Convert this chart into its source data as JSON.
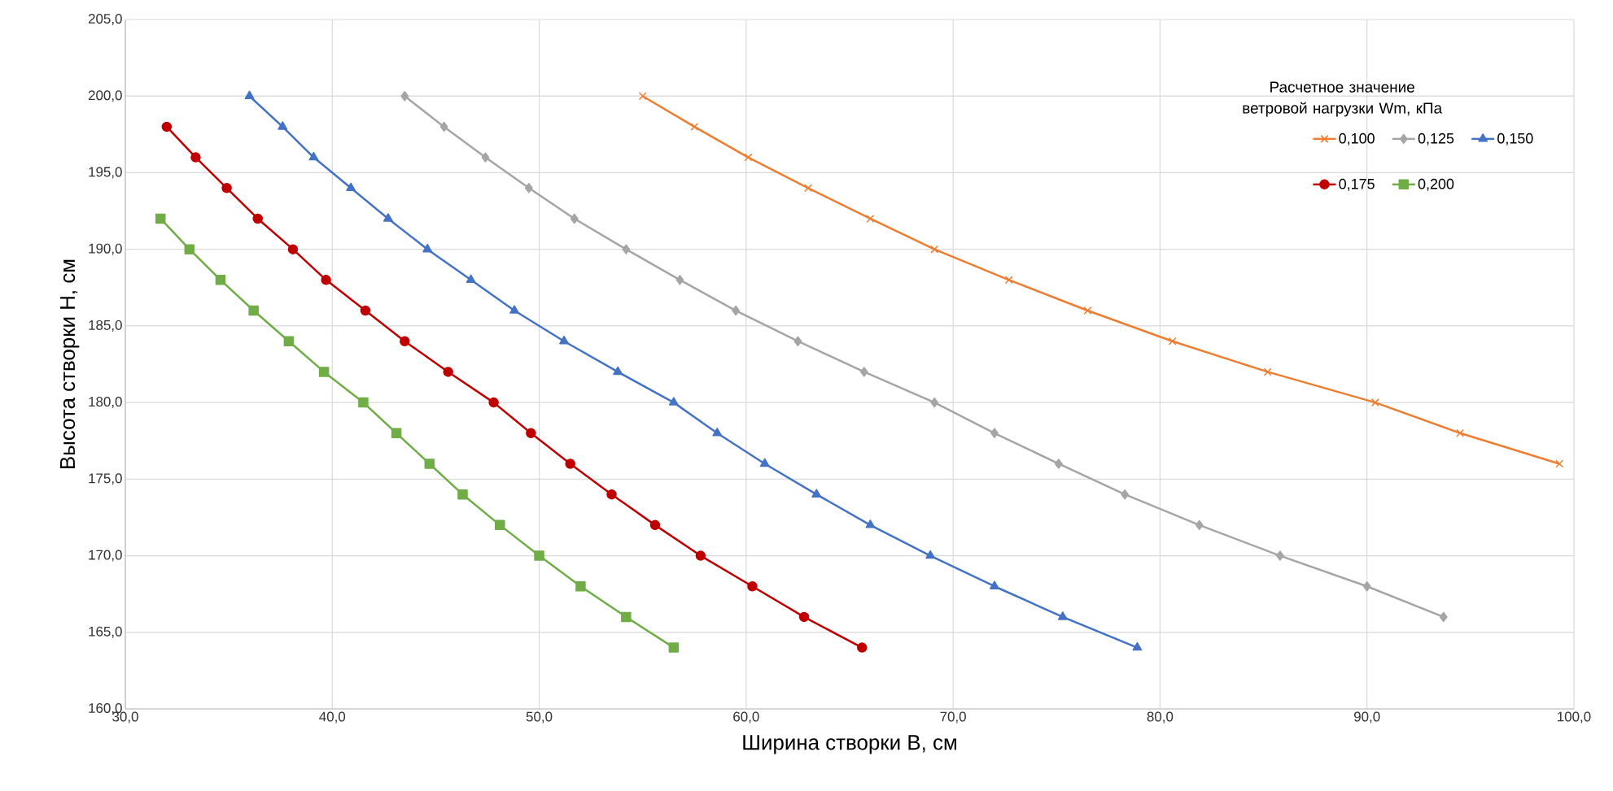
{
  "chart_data": {
    "type": "line",
    "xlabel": "Ширина створки B, см",
    "ylabel": "Высота створки H, см",
    "legend_title": "Расчетное значение ветровой нагрузки Wm, кПа",
    "legend": "top right",
    "grid": true,
    "line_style": "solid",
    "xlim": [
      30,
      100
    ],
    "ylim": [
      160,
      205
    ],
    "xticks": [
      {
        "value": 30,
        "label": "30,0"
      },
      {
        "value": 40,
        "label": "40,0"
      },
      {
        "value": 50,
        "label": "50,0"
      },
      {
        "value": 60,
        "label": "60,0"
      },
      {
        "value": 70,
        "label": "70,0"
      },
      {
        "value": 80,
        "label": "80,0"
      },
      {
        "value": 90,
        "label": "90,0"
      },
      {
        "value": 100,
        "label": "100,0"
      }
    ],
    "yticks": [
      {
        "value": 160,
        "label": "160,0"
      },
      {
        "value": 165,
        "label": "165,0"
      },
      {
        "value": 170,
        "label": "170,0"
      },
      {
        "value": 175,
        "label": "175,0"
      },
      {
        "value": 180,
        "label": "180,0"
      },
      {
        "value": 185,
        "label": "185,0"
      },
      {
        "value": 190,
        "label": "190,0"
      },
      {
        "value": 195,
        "label": "195,0"
      },
      {
        "value": 200,
        "label": "200,0"
      },
      {
        "value": 205,
        "label": "205,0"
      }
    ],
    "series": [
      {
        "name": "0,100",
        "color": "#ed7d31",
        "marker": "cross",
        "x": [
          55.0,
          57.5,
          60.1,
          63.0,
          66.0,
          69.1,
          72.7,
          76.5,
          80.6,
          85.2,
          90.4,
          94.5,
          99.3
        ],
        "values": [
          200,
          198,
          196,
          194,
          192,
          190,
          188,
          186,
          184,
          182,
          180,
          178,
          176
        ]
      },
      {
        "name": "0,125",
        "color": "#a5a5a5",
        "marker": "diamond",
        "x": [
          43.5,
          45.4,
          47.4,
          49.5,
          51.7,
          54.2,
          56.8,
          59.5,
          62.5,
          65.7,
          69.1,
          72.0,
          75.1,
          78.3,
          81.9,
          85.8,
          90.0,
          93.7
        ],
        "values": [
          200,
          198,
          196,
          194,
          192,
          190,
          188,
          186,
          184,
          182,
          180,
          178,
          176,
          174,
          172,
          170,
          168,
          166
        ]
      },
      {
        "name": "0,150",
        "color": "#4472c4",
        "marker": "triangle",
        "x": [
          36.0,
          37.6,
          39.1,
          40.9,
          42.7,
          44.6,
          46.7,
          48.8,
          51.2,
          53.8,
          56.5,
          58.6,
          60.9,
          63.4,
          66.0,
          68.9,
          72.0,
          75.3,
          78.9
        ],
        "values": [
          200,
          198,
          196,
          194,
          192,
          190,
          188,
          186,
          184,
          182,
          180,
          178,
          176,
          174,
          172,
          170,
          168,
          166,
          164
        ]
      },
      {
        "name": "0,175",
        "color": "#c00000",
        "marker": "circle",
        "x": [
          32.0,
          33.4,
          34.9,
          36.4,
          38.1,
          39.7,
          41.6,
          43.5,
          45.6,
          47.8,
          49.6,
          51.5,
          53.5,
          55.6,
          57.8,
          60.3,
          62.8,
          65.6
        ],
        "values": [
          198,
          196,
          194,
          192,
          190,
          188,
          186,
          184,
          182,
          180,
          178,
          176,
          174,
          172,
          170,
          168,
          166,
          164
        ]
      },
      {
        "name": "0,200",
        "color": "#70ad47",
        "marker": "square",
        "x": [
          31.7,
          33.1,
          34.6,
          36.2,
          37.9,
          39.6,
          41.5,
          43.1,
          44.7,
          46.3,
          48.1,
          50.0,
          52.0,
          54.2,
          56.5
        ],
        "values": [
          192,
          190,
          188,
          186,
          184,
          182,
          180,
          178,
          176,
          174,
          172,
          170,
          168,
          166,
          164
        ]
      }
    ]
  }
}
